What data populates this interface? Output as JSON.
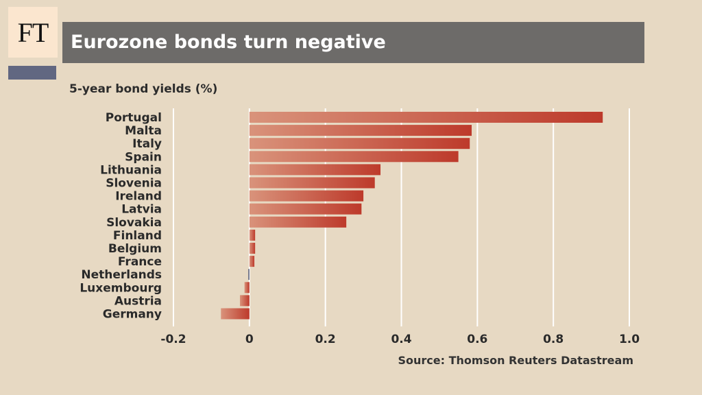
{
  "logo": {
    "text": "FT"
  },
  "header": {
    "title": "Eurozone bonds turn negative"
  },
  "colors": {
    "background": "#e7d9c3",
    "title_bar": "#6d6b69",
    "bar_dark": "#bd3a2b",
    "bar_light": "#d9937b",
    "accent": "#616781",
    "gridline": "#ffffff"
  },
  "source": "Source: Thomson Reuters Datastream",
  "chart_data": {
    "type": "bar",
    "orientation": "horizontal",
    "title": "Eurozone bonds turn negative",
    "subtitle": "5-year bond yields (%)",
    "categories": [
      "Portugal",
      "Malta",
      "Italy",
      "Spain",
      "Lithuania",
      "Slovenia",
      "Ireland",
      "Latvia",
      "Slovakia",
      "Finland",
      "Belgium",
      "France",
      "Netherlands",
      "Luxembourg",
      "Austria",
      "Germany"
    ],
    "values": [
      0.93,
      0.585,
      0.58,
      0.55,
      0.345,
      0.33,
      0.3,
      0.295,
      0.255,
      0.015,
      0.015,
      0.013,
      -0.003,
      -0.013,
      -0.025,
      -0.075
    ],
    "xlim": [
      -0.2,
      1.0
    ],
    "xticks": [
      -0.2,
      0,
      0.2,
      0.4,
      0.6,
      0.8,
      1.0
    ],
    "xtick_labels": [
      "-0.2",
      "0",
      "0.2",
      "0.4",
      "0.6",
      "0.8",
      "1.0"
    ],
    "grid": true,
    "xlabel": "",
    "ylabel": ""
  }
}
